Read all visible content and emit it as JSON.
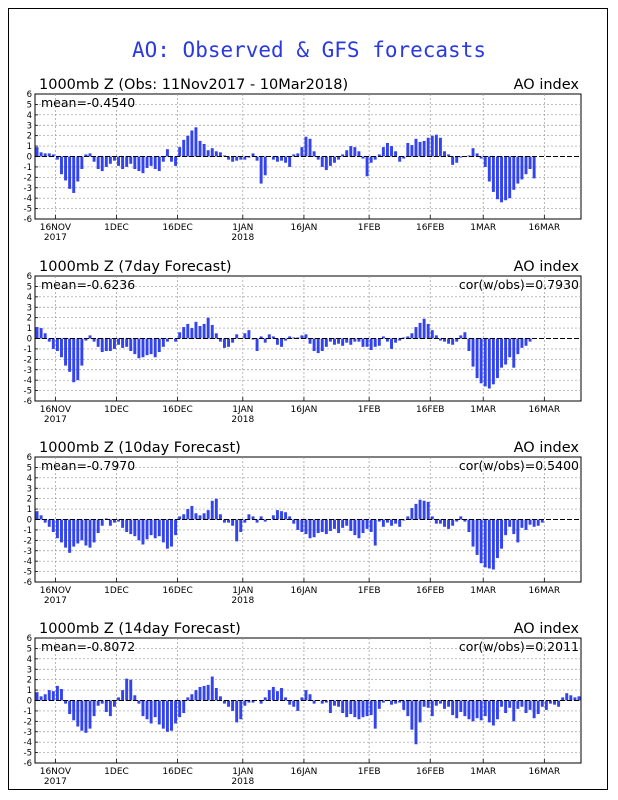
{
  "page": {
    "title": "AO: Observed & GFS forecasts",
    "bar_color": "#3344ee",
    "zero_line_color": "#000000",
    "grid_color": "#999999"
  },
  "chart_data": [
    {
      "type": "bar",
      "title": "1000mb Z (Obs: 11Nov2017 - 10Mar2018)",
      "right_label": "AO index",
      "mean_label": "mean=-0.4540",
      "cor_label": "",
      "ylim": [
        -6,
        6
      ],
      "yticks": [
        6,
        5,
        4,
        3,
        2,
        1,
        0,
        -1,
        -2,
        -3,
        -4,
        -5,
        -6
      ],
      "xlim": [
        0,
        134
      ],
      "xticks": [
        {
          "day": 5,
          "label": "16NOV",
          "sublabel": "2017"
        },
        {
          "day": 20,
          "label": "1DEC",
          "sublabel": ""
        },
        {
          "day": 35,
          "label": "16DEC",
          "sublabel": ""
        },
        {
          "day": 51,
          "label": "1JAN",
          "sublabel": "2018"
        },
        {
          "day": 66,
          "label": "16JAN",
          "sublabel": ""
        },
        {
          "day": 82,
          "label": "1FEB",
          "sublabel": ""
        },
        {
          "day": 97,
          "label": "16FEB",
          "sublabel": ""
        },
        {
          "day": 110,
          "label": "1MAR",
          "sublabel": ""
        },
        {
          "day": 125,
          "label": "16MAR",
          "sublabel": ""
        }
      ],
      "values": [
        0.9,
        0.4,
        0.3,
        0.3,
        0.2,
        -0.3,
        -1.7,
        -2.3,
        -3.1,
        -3.5,
        -2.4,
        -1.2,
        0.2,
        0.3,
        -0.5,
        -1.2,
        -1.4,
        -1.0,
        -0.7,
        -0.4,
        -0.9,
        -1.2,
        -1.0,
        -0.7,
        -1.2,
        -1.4,
        -1.6,
        -1.1,
        -0.9,
        -1.2,
        -1.4,
        -0.5,
        0.7,
        -0.5,
        -0.9,
        0.9,
        1.6,
        2.0,
        2.5,
        2.8,
        1.5,
        1.2,
        0.6,
        0.8,
        0.5,
        0.4,
        0.1,
        -0.3,
        -0.5,
        -0.4,
        -0.3,
        -0.3,
        -0.1,
        0.3,
        -0.4,
        -2.6,
        -1.8,
        0.0,
        -0.3,
        -0.5,
        -0.4,
        -0.6,
        -1.0,
        0.2,
        0.3,
        0.9,
        1.9,
        1.7,
        0.5,
        -0.3,
        -1.0,
        -1.3,
        -0.9,
        -0.6,
        -0.3,
        0.2,
        0.6,
        1.0,
        0.9,
        0.5,
        -0.2,
        -1.9,
        -0.6,
        -0.3,
        0.2,
        0.9,
        1.3,
        1.0,
        0.5,
        -0.5,
        -0.2,
        1.3,
        1.1,
        1.7,
        1.4,
        1.5,
        1.8,
        2.0,
        2.1,
        1.8,
        0.5,
        0.2,
        -0.8,
        -0.6,
        -0.1,
        0.0,
        0.1,
        0.8,
        0.3,
        -0.2,
        -1.0,
        -2.4,
        -3.4,
        -4.1,
        -4.4,
        -4.2,
        -4.0,
        -3.2,
        -2.6,
        -2.2,
        -1.7,
        -1.2,
        -2.1
      ]
    },
    {
      "type": "bar",
      "title": "1000mb Z (7day Forecast)",
      "right_label": "AO index",
      "mean_label": "mean=-0.6236",
      "cor_label": "cor(w/obs)=0.7930",
      "ylim": [
        -6,
        6
      ],
      "yticks": [
        6,
        5,
        4,
        3,
        2,
        1,
        0,
        -1,
        -2,
        -3,
        -4,
        -5,
        -6
      ],
      "xlim": [
        0,
        134
      ],
      "xticks": [
        {
          "day": 5,
          "label": "16NOV",
          "sublabel": "2017"
        },
        {
          "day": 20,
          "label": "1DEC",
          "sublabel": ""
        },
        {
          "day": 35,
          "label": "16DEC",
          "sublabel": ""
        },
        {
          "day": 51,
          "label": "1JAN",
          "sublabel": "2018"
        },
        {
          "day": 66,
          "label": "16JAN",
          "sublabel": ""
        },
        {
          "day": 82,
          "label": "1FEB",
          "sublabel": ""
        },
        {
          "day": 97,
          "label": "16FEB",
          "sublabel": ""
        },
        {
          "day": 110,
          "label": "1MAR",
          "sublabel": ""
        },
        {
          "day": 125,
          "label": "16MAR",
          "sublabel": ""
        }
      ],
      "values": [
        1.1,
        1.0,
        0.5,
        -0.3,
        -1.0,
        -1.2,
        -1.8,
        -2.6,
        -3.2,
        -4.2,
        -4.0,
        -2.6,
        -0.2,
        0.3,
        -0.3,
        -0.8,
        -1.3,
        -1.2,
        -1.2,
        -1.0,
        -0.6,
        -0.9,
        -0.8,
        -1.2,
        -1.5,
        -1.9,
        -1.8,
        -1.6,
        -1.5,
        -1.8,
        -1.3,
        -0.8,
        -0.3,
        0.0,
        -0.3,
        0.6,
        1.1,
        1.4,
        1.0,
        1.6,
        1.2,
        1.4,
        2.0,
        1.3,
        0.5,
        -0.3,
        -0.9,
        -0.8,
        -0.4,
        0.4,
        0.0,
        0.5,
        0.8,
        -0.1,
        -1.2,
        0.2,
        -0.4,
        0.4,
        0.2,
        -0.6,
        -0.8,
        -0.2,
        0.2,
        0.1,
        0.1,
        0.3,
        0.4,
        -0.5,
        -1.2,
        -1.4,
        -1.2,
        -0.8,
        -0.3,
        -0.6,
        -0.5,
        -0.7,
        -0.4,
        -0.6,
        -0.3,
        -0.3,
        -0.8,
        -0.8,
        -1.1,
        -0.8,
        -0.7,
        0.2,
        -0.3,
        -1.0,
        -0.4,
        -0.2,
        0.1,
        0.2,
        0.5,
        1.1,
        1.5,
        1.9,
        1.4,
        0.8,
        0.3,
        -0.2,
        -0.3,
        -0.5,
        -0.6,
        -0.3,
        0.3,
        0.6,
        -1.2,
        -2.7,
        -3.8,
        -4.3,
        -4.6,
        -4.8,
        -4.4,
        -3.8,
        -2.8,
        -2.5,
        -1.8,
        -2.8,
        -1.5,
        -0.9,
        -0.7,
        -0.3,
        0.0
      ]
    },
    {
      "type": "bar",
      "title": "1000mb Z (10day Forecast)",
      "right_label": "AO index",
      "mean_label": "mean=-0.7970",
      "cor_label": "cor(w/obs)=0.5400",
      "ylim": [
        -6,
        6
      ],
      "yticks": [
        6,
        5,
        4,
        3,
        2,
        1,
        0,
        -1,
        -2,
        -3,
        -4,
        -5,
        -6
      ],
      "xlim": [
        0,
        134
      ],
      "xticks": [
        {
          "day": 5,
          "label": "16NOV",
          "sublabel": "2017"
        },
        {
          "day": 20,
          "label": "1DEC",
          "sublabel": ""
        },
        {
          "day": 35,
          "label": "16DEC",
          "sublabel": ""
        },
        {
          "day": 51,
          "label": "1JAN",
          "sublabel": "2018"
        },
        {
          "day": 66,
          "label": "16JAN",
          "sublabel": ""
        },
        {
          "day": 82,
          "label": "1FEB",
          "sublabel": ""
        },
        {
          "day": 97,
          "label": "16FEB",
          "sublabel": ""
        },
        {
          "day": 110,
          "label": "1MAR",
          "sublabel": ""
        },
        {
          "day": 125,
          "label": "16MAR",
          "sublabel": ""
        }
      ],
      "values": [
        0.8,
        0.4,
        -0.3,
        -0.7,
        -1.2,
        -1.8,
        -2.2,
        -2.7,
        -3.2,
        -2.6,
        -2.3,
        -2.0,
        -2.5,
        -2.7,
        -2.2,
        -1.3,
        -0.6,
        0.1,
        -0.6,
        -0.3,
        -0.2,
        -0.8,
        -1.2,
        -1.4,
        -1.6,
        -2.0,
        -2.4,
        -1.9,
        -1.5,
        -1.8,
        -1.6,
        -2.2,
        -2.8,
        -2.6,
        -1.5,
        0.3,
        0.5,
        1.0,
        1.3,
        0.6,
        0.4,
        0.6,
        0.9,
        1.8,
        2.0,
        0.5,
        -0.3,
        -0.3,
        -0.6,
        -2.1,
        -1.2,
        -0.3,
        0.5,
        0.3,
        -0.3,
        0.3,
        -0.2,
        0.0,
        0.4,
        0.9,
        0.8,
        0.7,
        0.3,
        -0.4,
        -1.0,
        -1.2,
        -1.4,
        -1.8,
        -1.7,
        -1.3,
        -1.2,
        -1.4,
        -1.1,
        -0.9,
        -1.3,
        -0.8,
        -0.6,
        -1.1,
        -1.5,
        -1.8,
        -1.3,
        -0.9,
        -1.2,
        -2.5,
        -0.2,
        -0.7,
        -0.3,
        -0.6,
        -0.4,
        -0.7,
        -0.1,
        0.3,
        1.1,
        1.5,
        1.9,
        1.8,
        1.7,
        0.3,
        -0.4,
        -0.4,
        -0.7,
        -0.9,
        -0.6,
        -0.2,
        0.3,
        -0.2,
        -1.2,
        -2.6,
        -3.4,
        -4.2,
        -4.6,
        -4.7,
        -4.8,
        -3.7,
        -2.8,
        -1.5,
        -0.7,
        -1.4,
        -2.2,
        -0.8,
        -1.0,
        -0.5,
        -0.7,
        -0.6,
        -0.3,
        0.0
      ]
    },
    {
      "type": "bar",
      "title": "1000mb Z (14day Forecast)",
      "right_label": "AO index",
      "mean_label": "mean=-0.8072",
      "cor_label": "cor(w/obs)=0.2011",
      "ylim": [
        -6,
        6
      ],
      "yticks": [
        6,
        5,
        4,
        3,
        2,
        1,
        0,
        -1,
        -2,
        -3,
        -4,
        -5,
        -6
      ],
      "xlim": [
        0,
        134
      ],
      "xticks": [
        {
          "day": 5,
          "label": "16NOV",
          "sublabel": "2017"
        },
        {
          "day": 20,
          "label": "1DEC",
          "sublabel": ""
        },
        {
          "day": 35,
          "label": "16DEC",
          "sublabel": ""
        },
        {
          "day": 51,
          "label": "1JAN",
          "sublabel": "2018"
        },
        {
          "day": 66,
          "label": "16JAN",
          "sublabel": ""
        },
        {
          "day": 82,
          "label": "1FEB",
          "sublabel": ""
        },
        {
          "day": 97,
          "label": "16FEB",
          "sublabel": ""
        },
        {
          "day": 110,
          "label": "1MAR",
          "sublabel": ""
        },
        {
          "day": 125,
          "label": "16MAR",
          "sublabel": ""
        }
      ],
      "values": [
        0.8,
        0.4,
        0.6,
        1.0,
        0.9,
        1.4,
        1.1,
        -0.3,
        -1.3,
        -1.9,
        -2.5,
        -2.9,
        -3.1,
        -2.7,
        -1.5,
        -0.5,
        -0.3,
        -1.1,
        -1.5,
        -0.6,
        0.3,
        1.0,
        2.1,
        2.0,
        0.5,
        -0.3,
        -1.5,
        -1.8,
        -2.2,
        -1.6,
        -2.3,
        -2.7,
        -3.0,
        -2.9,
        -2.2,
        -1.6,
        -1.2,
        0.3,
        0.6,
        1.0,
        1.3,
        1.4,
        1.5,
        2.3,
        1.2,
        0.4,
        -0.3,
        -0.6,
        -1.0,
        -2.1,
        -1.8,
        -0.5,
        -0.2,
        -0.2,
        0.0,
        -0.3,
        0.3,
        1.0,
        1.3,
        0.9,
        1.2,
        0.3,
        -0.4,
        -0.6,
        -1.0,
        0.3,
        1.0,
        0.6,
        -0.3,
        0.0,
        -0.3,
        -0.2,
        -1.2,
        -0.5,
        -0.6,
        -1.2,
        -1.6,
        -1.3,
        -1.6,
        -1.8,
        -1.6,
        -1.5,
        -1.4,
        -2.7,
        -0.8,
        -0.2,
        0.0,
        -0.4,
        -0.3,
        -0.2,
        -0.9,
        -1.5,
        -2.8,
        -4.2,
        -2.1,
        -0.6,
        -0.7,
        -1.5,
        -0.5,
        -0.3,
        -0.8,
        -0.6,
        -1.4,
        -1.7,
        -1.1,
        -1.5,
        -1.8,
        -2.0,
        -1.7,
        -1.9,
        -1.5,
        -2.1,
        -2.4,
        -1.8,
        -0.6,
        -1.2,
        -0.7,
        -2.0,
        -0.8,
        -0.6,
        -1.2,
        -0.9,
        -1.7,
        -1.3,
        -0.6,
        -0.9,
        -0.3,
        -0.4,
        -0.6,
        0.3,
        0.7,
        0.5,
        0.3,
        0.4
      ]
    }
  ]
}
